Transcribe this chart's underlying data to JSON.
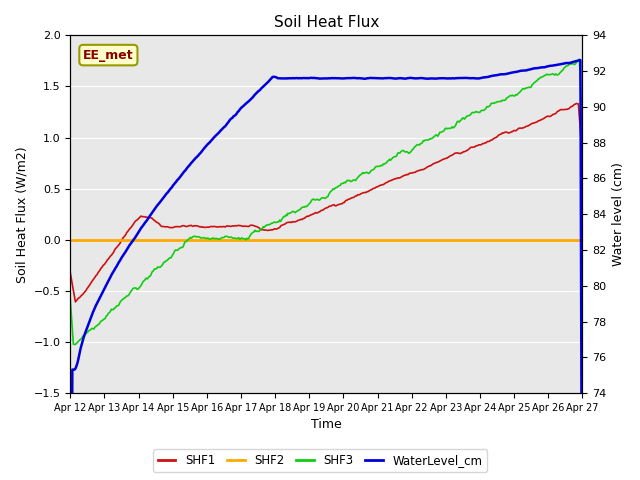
{
  "title": "Soil Heat Flux",
  "ylabel_left": "Soil Heat Flux (W/m2)",
  "ylabel_right": "Water level (cm)",
  "xlabel": "Time",
  "annotation": "EE_met",
  "xlim": [
    0,
    15
  ],
  "ylim_left": [
    -1.5,
    2.0
  ],
  "ylim_right": [
    74,
    94
  ],
  "x_ticks_labels": [
    "Apr 12",
    "Apr 13",
    "Apr 14",
    "Apr 15",
    "Apr 16",
    "Apr 17",
    "Apr 18",
    "Apr 19",
    "Apr 20",
    "Apr 21",
    "Apr 22",
    "Apr 23",
    "Apr 24",
    "Apr 25",
    "Apr 26",
    "Apr 27"
  ],
  "fig_bg_color": "#ffffff",
  "plot_bg_color": "#e8e8e8",
  "grid_color": "#ffffff",
  "colors": {
    "SHF1": "#cc1111",
    "SHF2": "#ffaa00",
    "SHF3": "#11cc11",
    "WaterLevel_cm": "#0000dd"
  },
  "yticks_left": [
    -1.5,
    -1.0,
    -0.5,
    0.0,
    0.5,
    1.0,
    1.5,
    2.0
  ],
  "yticks_right": [
    74,
    76,
    78,
    80,
    82,
    84,
    86,
    88,
    90,
    92,
    94
  ]
}
